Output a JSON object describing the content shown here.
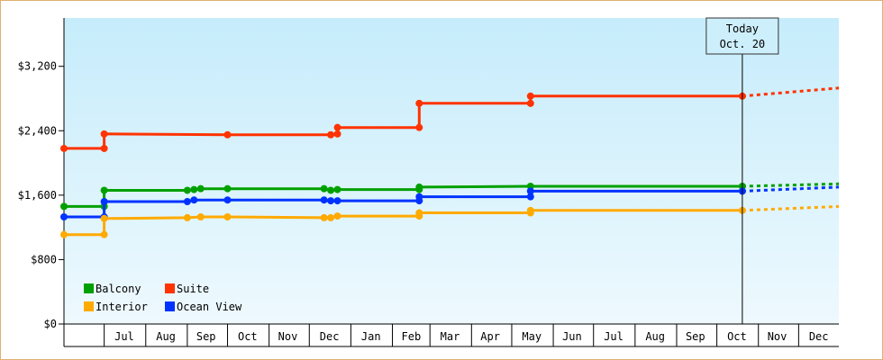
{
  "chart_data": {
    "type": "line",
    "step": true,
    "x_domain": [
      "2024-06-01",
      "2025-12-31"
    ],
    "y_range": [
      0,
      3800
    ],
    "y_ticks": [
      0,
      800,
      1600,
      2400,
      3200
    ],
    "y_tick_labels": [
      "$0",
      "$800",
      "$1,600",
      "$2,400",
      "$3,200"
    ],
    "x_month_labels": [
      {
        "label": "Jul",
        "date": "2024-07-16"
      },
      {
        "label": "Aug",
        "date": "2024-08-16"
      },
      {
        "label": "Sep",
        "date": "2024-09-15"
      },
      {
        "label": "Oct",
        "date": "2024-10-16"
      },
      {
        "label": "Nov",
        "date": "2024-11-15"
      },
      {
        "label": "Dec",
        "date": "2024-12-16"
      },
      {
        "label": "Jan",
        "date": "2025-01-16"
      },
      {
        "label": "Feb",
        "date": "2025-02-15"
      },
      {
        "label": "Mar",
        "date": "2025-03-16"
      },
      {
        "label": "Apr",
        "date": "2025-04-15"
      },
      {
        "label": "May",
        "date": "2025-05-16"
      },
      {
        "label": "Jun",
        "date": "2025-06-15"
      },
      {
        "label": "Jul",
        "date": "2025-07-16"
      },
      {
        "label": "Aug",
        "date": "2025-08-16"
      },
      {
        "label": "Sep",
        "date": "2025-09-15"
      },
      {
        "label": "Oct",
        "date": "2025-10-16"
      },
      {
        "label": "Nov",
        "date": "2025-11-15"
      },
      {
        "label": "Dec",
        "date": "2025-12-16"
      }
    ],
    "x_month_boundaries": [
      "2024-07-01",
      "2024-08-01",
      "2024-09-01",
      "2024-10-01",
      "2024-11-01",
      "2024-12-01",
      "2025-01-01",
      "2025-02-01",
      "2025-03-01",
      "2025-04-01",
      "2025-05-01",
      "2025-06-01",
      "2025-07-01",
      "2025-08-01",
      "2025-09-01",
      "2025-10-01",
      "2025-11-01",
      "2025-12-01"
    ],
    "today": {
      "label_line1": "Today",
      "label_line2": "Oct. 20",
      "date": "2025-10-20"
    },
    "legend_position": "bottom-left",
    "series": [
      {
        "name": "Suite",
        "color": "#ff3300",
        "points": [
          [
            "2024-06-01",
            2180
          ],
          [
            "2024-07-01",
            2180
          ],
          [
            "2024-07-01",
            2360
          ],
          [
            "2024-10-01",
            2350
          ],
          [
            "2024-12-17",
            2350
          ],
          [
            "2024-12-22",
            2360
          ],
          [
            "2024-12-22",
            2440
          ],
          [
            "2025-02-21",
            2440
          ],
          [
            "2025-02-21",
            2740
          ],
          [
            "2025-05-15",
            2740
          ],
          [
            "2025-05-15",
            2830
          ],
          [
            "2025-10-20",
            2830
          ]
        ],
        "forecast": [
          [
            "2025-10-20",
            2830
          ],
          [
            "2025-12-31",
            2930
          ]
        ]
      },
      {
        "name": "Balcony",
        "color": "#00a000",
        "points": [
          [
            "2024-06-01",
            1460
          ],
          [
            "2024-07-01",
            1460
          ],
          [
            "2024-07-01",
            1660
          ],
          [
            "2024-09-01",
            1660
          ],
          [
            "2024-09-06",
            1670
          ],
          [
            "2024-09-11",
            1680
          ],
          [
            "2024-10-01",
            1680
          ],
          [
            "2024-12-12",
            1680
          ],
          [
            "2024-12-17",
            1660
          ],
          [
            "2024-12-22",
            1670
          ],
          [
            "2025-02-21",
            1670
          ],
          [
            "2025-02-21",
            1700
          ],
          [
            "2025-05-15",
            1710
          ],
          [
            "2025-10-20",
            1710
          ]
        ],
        "forecast": [
          [
            "2025-10-20",
            1710
          ],
          [
            "2025-12-31",
            1740
          ]
        ]
      },
      {
        "name": "Ocean View",
        "color": "#0033ff",
        "points": [
          [
            "2024-06-01",
            1330
          ],
          [
            "2024-07-01",
            1330
          ],
          [
            "2024-07-01",
            1520
          ],
          [
            "2024-09-01",
            1520
          ],
          [
            "2024-09-06",
            1540
          ],
          [
            "2024-10-01",
            1540
          ],
          [
            "2024-12-12",
            1540
          ],
          [
            "2024-12-17",
            1530
          ],
          [
            "2024-12-22",
            1530
          ],
          [
            "2025-02-21",
            1530
          ],
          [
            "2025-02-21",
            1580
          ],
          [
            "2025-05-15",
            1580
          ],
          [
            "2025-05-15",
            1650
          ],
          [
            "2025-10-20",
            1650
          ]
        ],
        "forecast": [
          [
            "2025-10-20",
            1650
          ],
          [
            "2025-12-31",
            1700
          ]
        ]
      },
      {
        "name": "Interior",
        "color": "#ffaa00",
        "points": [
          [
            "2024-06-01",
            1110
          ],
          [
            "2024-07-01",
            1110
          ],
          [
            "2024-07-01",
            1310
          ],
          [
            "2024-09-01",
            1320
          ],
          [
            "2024-09-11",
            1330
          ],
          [
            "2024-10-01",
            1330
          ],
          [
            "2024-12-12",
            1320
          ],
          [
            "2024-12-17",
            1320
          ],
          [
            "2024-12-22",
            1340
          ],
          [
            "2025-02-21",
            1340
          ],
          [
            "2025-02-21",
            1380
          ],
          [
            "2025-05-15",
            1380
          ],
          [
            "2025-05-15",
            1410
          ],
          [
            "2025-10-20",
            1410
          ]
        ],
        "forecast": [
          [
            "2025-10-20",
            1410
          ],
          [
            "2025-12-31",
            1460
          ]
        ]
      }
    ],
    "legend": [
      {
        "name": "Balcony",
        "color": "#00a000"
      },
      {
        "name": "Suite",
        "color": "#ff3300"
      },
      {
        "name": "Interior",
        "color": "#ffaa00"
      },
      {
        "name": "Ocean View",
        "color": "#0033ff"
      }
    ]
  }
}
